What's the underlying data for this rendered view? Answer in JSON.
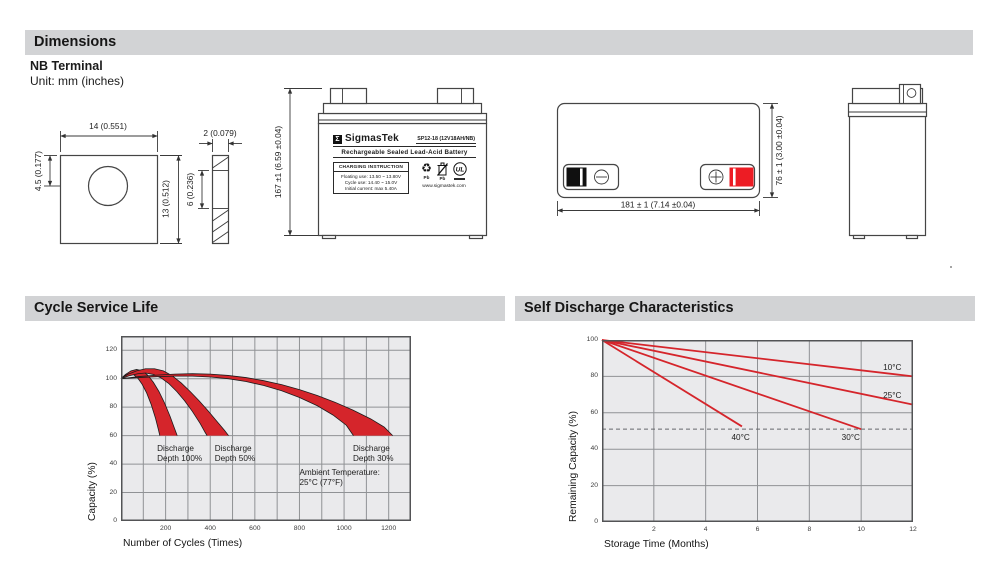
{
  "page": {
    "sections": {
      "dimensions": {
        "title": "Dimensions"
      },
      "cycle": {
        "title": "Cycle Service Life"
      },
      "self_discharge": {
        "title": "Self Discharge Characteristics"
      }
    },
    "subheading": {
      "line1": "NB Terminal",
      "line2": "Unit: mm (inches)"
    }
  },
  "colors": {
    "accent_red": "#d5252b",
    "terminal_red": "#ed1c24",
    "header_bg": "#d2d3d5",
    "plot_bg": "#eaeaec",
    "grid": "#909295",
    "frame": "#535456"
  },
  "drawings": {
    "plate": {
      "dim_width": "14 (0.551)",
      "dim_hole_offset": "4.5 (0.177)",
      "dim_height": "13 (0.512)"
    },
    "strip": {
      "dim_thickness": "2 (0.079)",
      "dim_mid": "6 (0.236)"
    },
    "front": {
      "dim_height": "167 ±1 (6.59 ±0.04)"
    },
    "top": {
      "dim_length": "181 ± 1 (7.14 ±0.04)",
      "dim_width": "76 ± 1 (3.00 ±0.04)"
    },
    "label": {
      "logo_glyph": "Σ",
      "brand": "SigmasTek",
      "model": "SP12-18 (12V18AH/NB)",
      "subtitle": "Rechargeable Sealed Lead-Acid Battery",
      "charging_box": {
        "title": "CHARGING INSTRUCTION",
        "lines": [
          "Floating use: 13.50 ~ 13.80V",
          "Cycle use: 14.40 ~ 15.0V",
          "Initial current: max 5.40A"
        ]
      },
      "pb_label": "Pb",
      "ul_text": "UL",
      "website": "www.sigmastek.com"
    }
  },
  "chart_data": [
    {
      "type": "area-bands",
      "title": "Cycle Service Life",
      "xlabel": "Number of Cycles (Times)",
      "ylabel": "Capacity (%)",
      "xlim": [
        0,
        1300
      ],
      "ylim": [
        0,
        130
      ],
      "x_grid": [
        100,
        200,
        300,
        400,
        500,
        600,
        700,
        800,
        900,
        1000,
        1100,
        1200
      ],
      "y_grid": [
        20,
        40,
        60,
        80,
        100,
        120
      ],
      "x_ticks": [
        200,
        400,
        600,
        800,
        1000,
        1200
      ],
      "y_ticks": [
        0,
        20,
        40,
        60,
        80,
        100,
        120
      ],
      "grid_on": true,
      "legend": "none",
      "bands": [
        {
          "name": "Discharge Depth 100%",
          "upper": [
            [
              0,
              100
            ],
            [
              20,
              103
            ],
            [
              45,
              105.5
            ],
            [
              70,
              106.5
            ],
            [
              95,
              105.5
            ],
            [
              120,
              102.5
            ],
            [
              145,
              97.5
            ],
            [
              170,
              91
            ],
            [
              195,
              83
            ],
            [
              220,
              73.5
            ],
            [
              240,
              65
            ],
            [
              252,
              60
            ]
          ],
          "lower": [
            [
              0,
              100
            ],
            [
              15,
              102
            ],
            [
              35,
              103.5
            ],
            [
              55,
              103
            ],
            [
              75,
              100.5
            ],
            [
              95,
              96
            ],
            [
              115,
              90
            ],
            [
              135,
              82
            ],
            [
              155,
              72
            ],
            [
              168,
              64
            ],
            [
              174,
              60
            ]
          ]
        },
        {
          "name": "Discharge Depth 50%",
          "upper": [
            [
              0,
              100
            ],
            [
              30,
              103
            ],
            [
              70,
              105.5
            ],
            [
              110,
              107
            ],
            [
              150,
              107
            ],
            [
              190,
              105.5
            ],
            [
              230,
              102
            ],
            [
              270,
              97
            ],
            [
              310,
              91
            ],
            [
              350,
              84.5
            ],
            [
              390,
              77.5
            ],
            [
              430,
              70
            ],
            [
              465,
              63.5
            ],
            [
              482,
              60
            ]
          ],
          "lower": [
            [
              0,
              100
            ],
            [
              35,
              102
            ],
            [
              75,
              103.5
            ],
            [
              110,
              104
            ],
            [
              145,
              103
            ],
            [
              180,
              100.5
            ],
            [
              215,
              96.5
            ],
            [
              250,
              91
            ],
            [
              285,
              84.5
            ],
            [
              320,
              77
            ],
            [
              355,
              68.5
            ],
            [
              378,
              62
            ],
            [
              386,
              60
            ]
          ]
        },
        {
          "name": "Discharge Depth 30%",
          "upper": [
            [
              0,
              100
            ],
            [
              80,
              101.5
            ],
            [
              160,
              102.5
            ],
            [
              240,
              103.2
            ],
            [
              320,
              103.5
            ],
            [
              400,
              103.2
            ],
            [
              480,
              102.3
            ],
            [
              560,
              100.8
            ],
            [
              640,
              98.6
            ],
            [
              720,
              95.8
            ],
            [
              800,
              92.3
            ],
            [
              880,
              88.2
            ],
            [
              960,
              83.4
            ],
            [
              1040,
              77.9
            ],
            [
              1120,
              71.7
            ],
            [
              1180,
              66
            ],
            [
              1218,
              60
            ]
          ],
          "lower": [
            [
              0,
              100
            ],
            [
              80,
              100.8
            ],
            [
              160,
              101.4
            ],
            [
              240,
              101.8
            ],
            [
              320,
              101.8
            ],
            [
              400,
              101.2
            ],
            [
              480,
              100
            ],
            [
              560,
              98
            ],
            [
              640,
              95.2
            ],
            [
              720,
              91.5
            ],
            [
              800,
              86.8
            ],
            [
              880,
              81
            ],
            [
              950,
              74.5
            ],
            [
              1010,
              67.3
            ],
            [
              1042,
              60
            ]
          ]
        }
      ],
      "annotations": [
        {
          "lines": [
            "Discharge",
            "Depth 100%"
          ],
          "x": 162,
          "y": 54
        },
        {
          "lines": [
            "Discharge",
            "Depth 50%"
          ],
          "x": 420,
          "y": 54
        },
        {
          "lines": [
            "Discharge",
            "Depth 30%"
          ],
          "x": 1040,
          "y": 54
        },
        {
          "lines": [
            "Ambient Temperature:",
            "25°C (77°F)"
          ],
          "x": 800,
          "y": 37
        }
      ]
    },
    {
      "type": "line",
      "title": "Self Discharge Characteristics",
      "xlabel": "Storage Time (Months)",
      "ylabel": "Remaining Capacity (%)",
      "xlim": [
        0,
        12
      ],
      "ylim": [
        0,
        100
      ],
      "x_grid": [
        2,
        4,
        6,
        8,
        10
      ],
      "y_grid": [
        20,
        40,
        60,
        80
      ],
      "x_ticks": [
        2,
        4,
        6,
        8,
        10,
        12
      ],
      "y_ticks": [
        0,
        20,
        40,
        60,
        80,
        100
      ],
      "grid_on": true,
      "legend": "inline-labels",
      "threshold": {
        "y": 51,
        "style": "dashed"
      },
      "series": [
        {
          "name": "10°C",
          "points": [
            [
              0,
              100
            ],
            [
              12,
              80
            ]
          ],
          "label_x": 11.2,
          "label_y": 84.5
        },
        {
          "name": "25°C",
          "points": [
            [
              0,
              100
            ],
            [
              12,
              64.5
            ]
          ],
          "label_x": 11.2,
          "label_y": 69.5
        },
        {
          "name": "30°C",
          "points": [
            [
              0,
              100
            ],
            [
              10,
              51
            ]
          ],
          "label_x": 9.6,
          "label_y": 46
        },
        {
          "name": "40°C",
          "points": [
            [
              0,
              100
            ],
            [
              5.4,
              52.5
            ]
          ],
          "label_x": 5.35,
          "label_y": 46
        }
      ]
    }
  ]
}
